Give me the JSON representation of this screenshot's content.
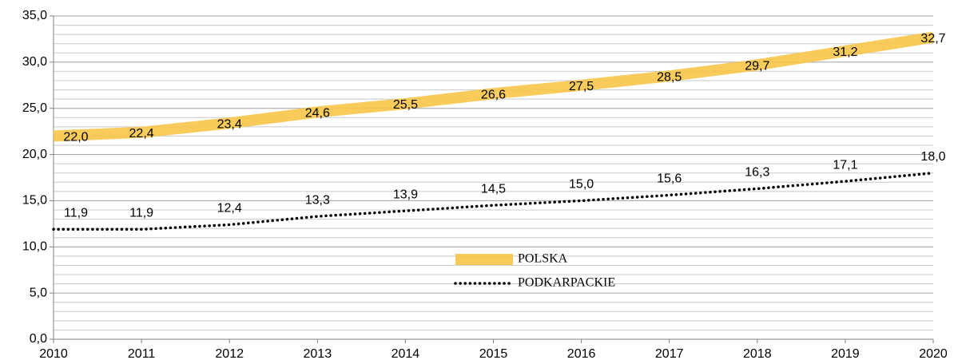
{
  "chart_data": {
    "type": "line",
    "x": [
      2010,
      2011,
      2012,
      2013,
      2014,
      2015,
      2016,
      2017,
      2018,
      2019,
      2020
    ],
    "xlim": [
      2010,
      2020
    ],
    "xticks": [
      2010,
      2011,
      2012,
      2013,
      2014,
      2015,
      2016,
      2017,
      2018,
      2019,
      2020
    ],
    "ylim": [
      0,
      35
    ],
    "yticks": [
      {
        "value": 0,
        "label": "0,0"
      },
      {
        "value": 5,
        "label": "5,0"
      },
      {
        "value": 10,
        "label": "10,0"
      },
      {
        "value": 15,
        "label": "15,0"
      },
      {
        "value": 20,
        "label": "20,0"
      },
      {
        "value": 25,
        "label": "25,0"
      },
      {
        "value": 30,
        "label": "30,0"
      },
      {
        "value": 35,
        "label": "35,0"
      }
    ],
    "yminorticks": [
      1,
      2,
      3,
      4,
      6,
      7,
      8,
      9,
      11,
      12,
      13,
      14,
      16,
      17,
      18,
      19,
      21,
      22,
      23,
      24,
      26,
      27,
      28,
      29,
      31,
      32,
      33,
      34
    ],
    "grid": true,
    "legend": "center",
    "series": [
      {
        "name": "POLSKA",
        "color": "#f7c548",
        "style": "solid",
        "values": [
          22.0,
          22.4,
          23.4,
          24.6,
          25.5,
          26.6,
          27.5,
          28.5,
          29.7,
          31.2,
          32.7
        ],
        "value_labels": [
          "22,0",
          "22,4",
          "23,4",
          "24,6",
          "25,5",
          "26,6",
          "27,5",
          "28,5",
          "29,7",
          "31,2",
          "32,7"
        ]
      },
      {
        "name": "PODKARPACKIE",
        "color": "#000000",
        "style": "dotted",
        "values": [
          11.9,
          11.9,
          12.4,
          13.3,
          13.9,
          14.5,
          15.0,
          15.6,
          16.3,
          17.1,
          18.0
        ],
        "value_labels": [
          "11,9",
          "11,9",
          "12,4",
          "13,3",
          "13,9",
          "14,5",
          "15,0",
          "15,6",
          "16,3",
          "17,1",
          "18,0"
        ]
      }
    ]
  }
}
